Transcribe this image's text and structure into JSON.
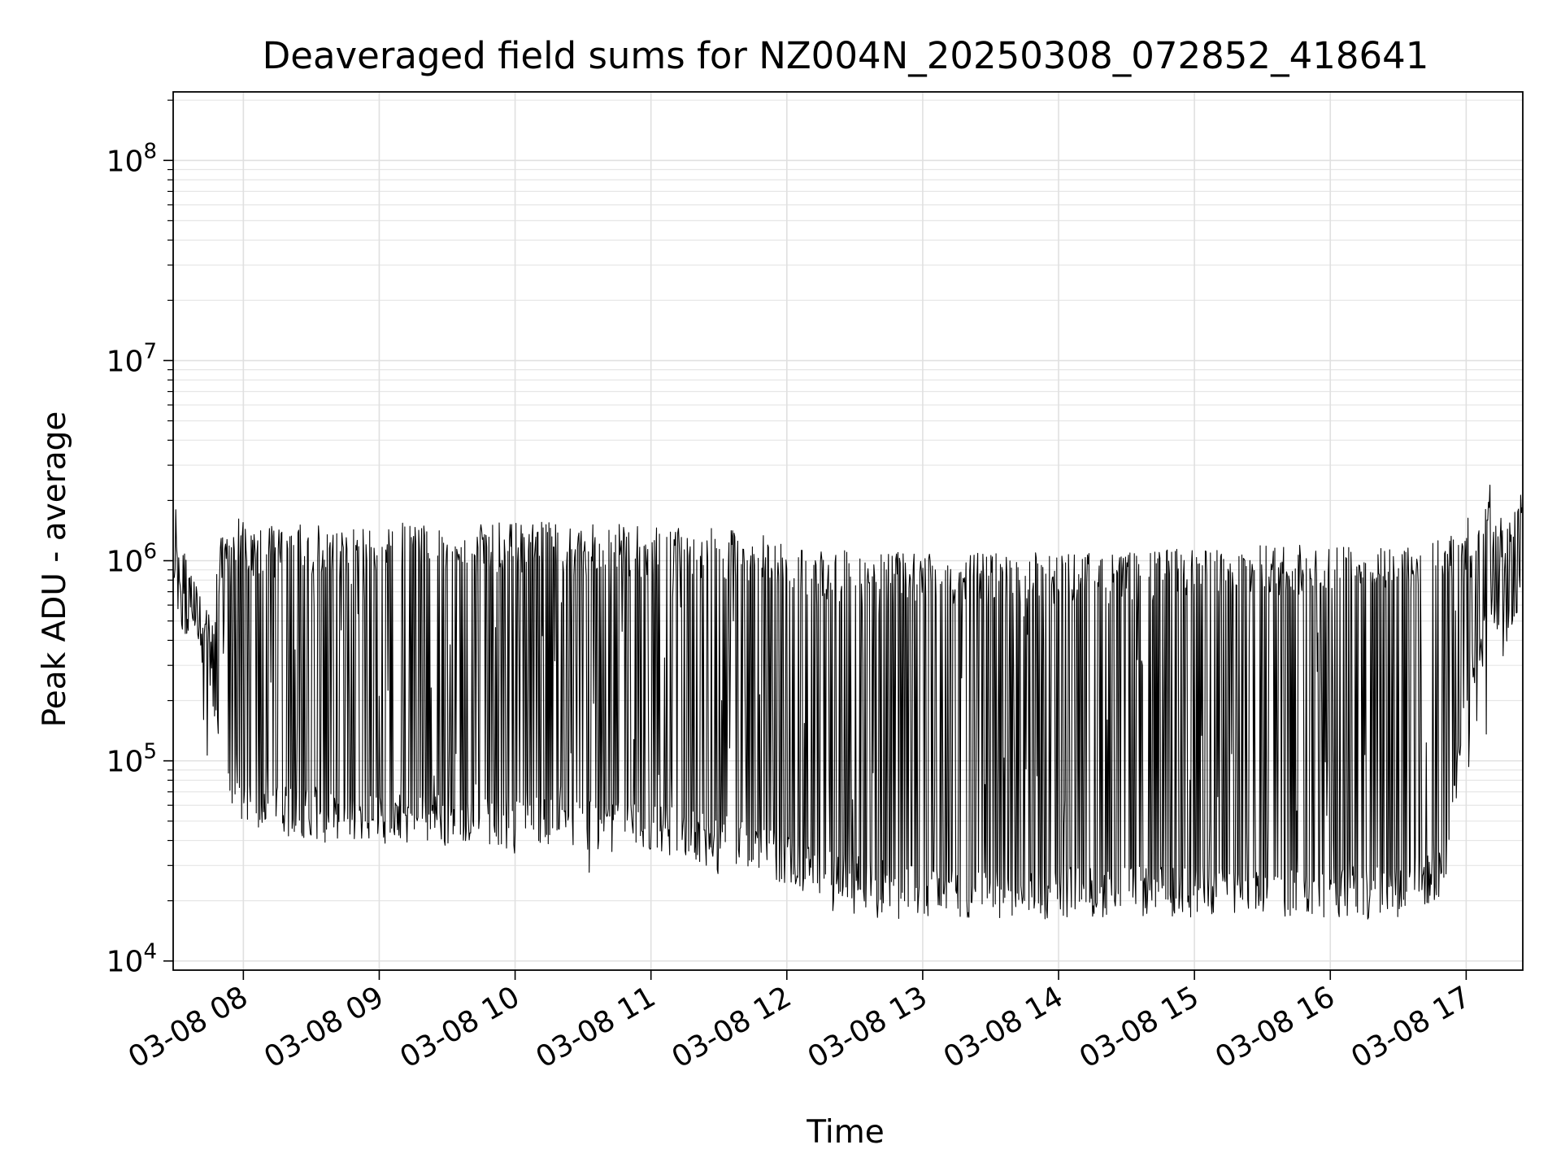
{
  "chart_data": {
    "type": "line",
    "title": "Deaveraged field sums for NZ004N_20250308_072852_418641",
    "xlabel": "Time",
    "ylabel": "Peak ADU - average",
    "yscale": "log",
    "grid": true,
    "xlim": [
      "2025-03-08 07:29",
      "2025-03-08 17:25"
    ],
    "ylim": [
      9000,
      220000000
    ],
    "x_ticks": [
      "03-08 08",
      "03-08 09",
      "03-08 10",
      "03-08 11",
      "03-08 12",
      "03-08 13",
      "03-08 14",
      "03-08 15",
      "03-08 16",
      "03-08 17"
    ],
    "y_ticks": [
      {
        "base": "10",
        "exp": "4",
        "value": 10000
      },
      {
        "base": "10",
        "exp": "5",
        "value": 100000
      },
      {
        "base": "10",
        "exp": "6",
        "value": 1000000
      },
      {
        "base": "10",
        "exp": "7",
        "value": 10000000
      },
      {
        "base": "10",
        "exp": "8",
        "value": 100000000
      }
    ],
    "series": [
      {
        "color": "#000000",
        "x": [
          "07:29",
          "07:31",
          "07:34",
          "07:38",
          "07:42",
          "07:46",
          "07:50",
          "07:54",
          "07:58",
          "08:05",
          "08:10",
          "08:20",
          "08:30",
          "08:40",
          "08:50",
          "09:00",
          "09:10",
          "09:20",
          "09:30",
          "09:40",
          "09:50",
          "10:00",
          "10:10",
          "10:20",
          "10:30",
          "10:40",
          "10:50",
          "11:00",
          "11:10",
          "11:20",
          "11:30",
          "11:40",
          "11:50",
          "12:00",
          "12:10",
          "12:20",
          "12:30",
          "12:40",
          "12:50",
          "13:00",
          "13:10",
          "13:20",
          "13:30",
          "13:40",
          "13:50",
          "14:00",
          "14:10",
          "14:20",
          "14:30",
          "14:40",
          "14:50",
          "15:00",
          "15:10",
          "15:20",
          "15:30",
          "15:40",
          "15:50",
          "16:00",
          "16:10",
          "16:20",
          "16:30",
          "16:40",
          "16:50",
          "17:00",
          "17:10",
          "17:20",
          "17:25"
        ],
        "peak": [
          3000000,
          1250000,
          1200000,
          850000,
          600000,
          550000,
          1300000,
          1350000,
          1700000,
          1500000,
          1500000,
          1500000,
          1550000,
          1500000,
          1450000,
          1500000,
          1550000,
          1500000,
          1500000,
          1500000,
          1550000,
          1550000,
          1600000,
          1550000,
          1500000,
          1550000,
          1500000,
          1500000,
          1450000,
          1450000,
          1450000,
          1400000,
          1350000,
          1200000,
          1150000,
          1150000,
          1100000,
          1100000,
          1100000,
          1100000,
          1100000,
          1100000,
          1100000,
          1100000,
          1100000,
          1100000,
          1100000,
          1100000,
          1100000,
          1100000,
          1150000,
          1150000,
          1150000,
          1150000,
          1200000,
          1200000,
          1200000,
          1200000,
          1200000,
          1250000,
          1250000,
          1250000,
          1300000,
          1600000,
          2500000,
          1500000,
          3300000
        ],
        "base": [
          900000,
          700000,
          500000,
          420000,
          350000,
          250000,
          90000,
          65000,
          60000,
          55000,
          55000,
          55000,
          55000,
          55000,
          52000,
          50000,
          50000,
          52000,
          50000,
          50000,
          50000,
          50000,
          50000,
          50000,
          48000,
          46000,
          46000,
          45000,
          45000,
          42000,
          40000,
          38000,
          34000,
          32000,
          28000,
          26000,
          25000,
          24000,
          23000,
          22000,
          21000,
          21000,
          21000,
          21000,
          21000,
          22000,
          22000,
          22000,
          22000,
          22000,
          22000,
          22000,
          22000,
          22000,
          22000,
          22000,
          22000,
          22000,
          22000,
          22000,
          22000,
          24000,
          28000,
          200000,
          500000,
          600000,
          700000
        ],
        "deep_min": [
          800000,
          600000,
          300000,
          250000,
          80000,
          50000,
          46000,
          45000,
          40000,
          40000,
          45000,
          42000,
          40000,
          38000,
          35000,
          37000,
          38000,
          40000,
          38000,
          35000,
          35000,
          33000,
          33000,
          30000,
          28000,
          27000,
          30000,
          30000,
          28000,
          27000,
          26000,
          25000,
          22000,
          20000,
          15000,
          17000,
          17000,
          16000,
          16000,
          17000,
          17000,
          16000,
          15000,
          16000,
          16000,
          16000,
          16000,
          16000,
          17000,
          17000,
          17000,
          17000,
          17000,
          16000,
          17000,
          16000,
          16000,
          16000,
          16000,
          16000,
          16000,
          18000,
          20000,
          90000,
          100000,
          400000,
          600000
        ]
      }
    ]
  }
}
